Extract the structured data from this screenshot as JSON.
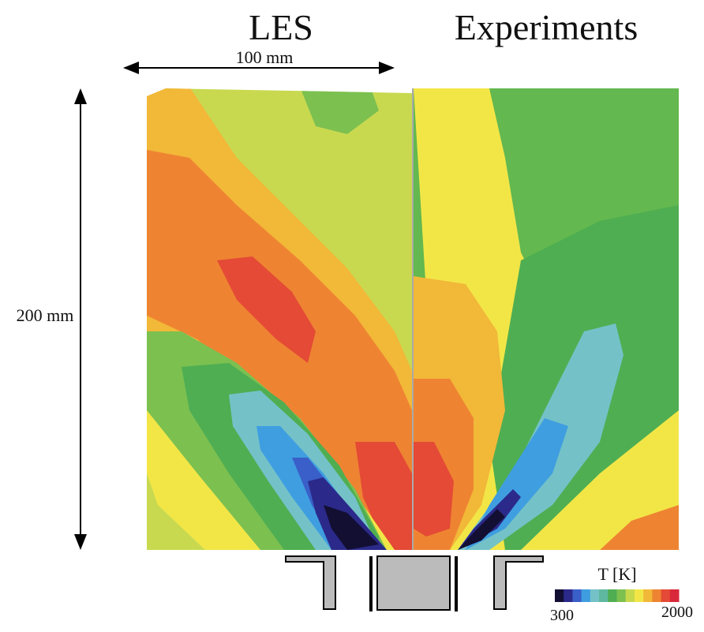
{
  "titles": {
    "left": "LES",
    "right": "Experiments"
  },
  "dimensions": {
    "width": "100 mm",
    "height": "200 mm"
  },
  "colorbar": {
    "title": "T  [K]",
    "min": "300",
    "max": "2000",
    "colors": [
      "#120f33",
      "#2b2a8a",
      "#3a5fc8",
      "#3f9ee0",
      "#74c2c8",
      "#5fb8a0",
      "#4fae52",
      "#7cc050",
      "#c6d84c",
      "#f2e647",
      "#f2b838",
      "#ee8432",
      "#e44a35",
      "#d8283a"
    ]
  }
}
